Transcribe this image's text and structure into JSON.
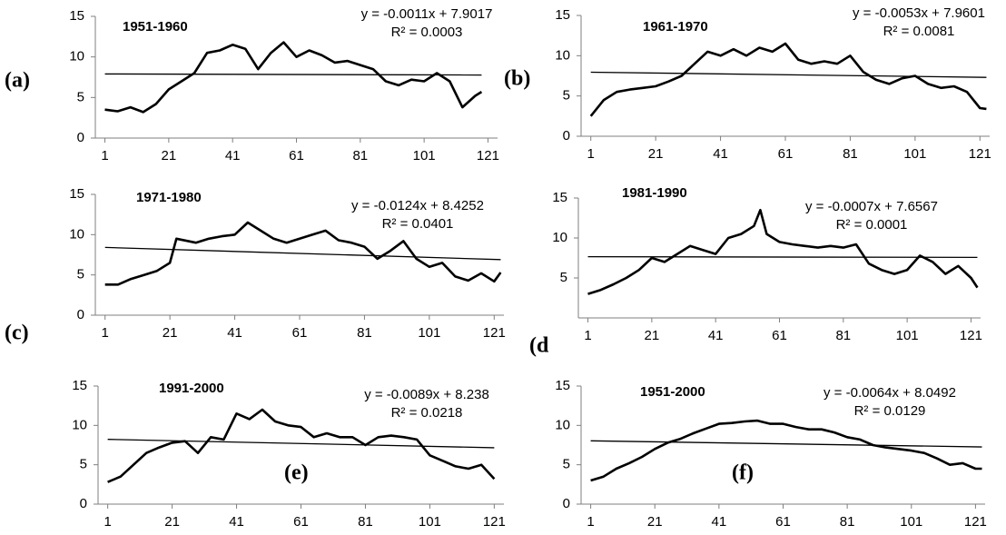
{
  "chart_data": [
    {
      "type": "line",
      "title": "1951-1960",
      "label": "(a)",
      "color": "#000000",
      "equation": "y = -0.0011x + 7.9017",
      "slope": -0.0011,
      "intercept": 7.9017,
      "r2": "R² = 0.0003",
      "x": [
        1,
        5,
        9,
        13,
        17,
        21,
        25,
        29,
        33,
        37,
        41,
        45,
        49,
        53,
        57,
        61,
        65,
        69,
        73,
        77,
        81,
        85,
        89,
        93,
        97,
        101,
        105,
        109,
        113,
        117,
        119
      ],
      "values": [
        3.5,
        3.3,
        3.8,
        3.2,
        4.2,
        6,
        7,
        8,
        10.5,
        10.8,
        11.5,
        11,
        8.5,
        10.5,
        11.8,
        10,
        10.8,
        10.2,
        9.3,
        9.5,
        9,
        8.5,
        7,
        6.5,
        7.2,
        7,
        8,
        7,
        3.8,
        5.2,
        5.7
      ],
      "xlim": [
        -2,
        124
      ],
      "ylim": [
        0,
        15
      ],
      "xticks": [
        1,
        21,
        41,
        61,
        81,
        101,
        121
      ],
      "yticks": [
        0,
        5,
        10,
        15
      ]
    },
    {
      "type": "line",
      "title": "1961-1970",
      "label": "(b)",
      "color": "#000000",
      "equation": "y = -0.0053x + 7.9601",
      "slope": -0.0053,
      "intercept": 7.9601,
      "r2": "R² = 0.0081",
      "x": [
        1,
        5,
        9,
        13,
        17,
        21,
        25,
        29,
        33,
        37,
        41,
        45,
        49,
        53,
        57,
        61,
        65,
        69,
        73,
        77,
        81,
        85,
        89,
        93,
        97,
        101,
        105,
        109,
        113,
        117,
        121,
        123
      ],
      "values": [
        2.5,
        4.5,
        5.5,
        5.8,
        6,
        6.2,
        6.8,
        7.5,
        9,
        10.5,
        10,
        10.8,
        10,
        11,
        10.5,
        11.5,
        9.5,
        9,
        9.3,
        9,
        10,
        8,
        7,
        6.5,
        7.2,
        7.5,
        6.5,
        6,
        6.2,
        5.5,
        3.5,
        3.4
      ],
      "xlim": [
        -2,
        124
      ],
      "ylim": [
        0,
        15
      ],
      "xticks": [
        1,
        21,
        41,
        61,
        81,
        101,
        121
      ],
      "yticks": [
        0,
        5,
        10,
        15
      ]
    },
    {
      "type": "line",
      "title": "1971-1980",
      "label": "(c)",
      "color": "#000000",
      "equation": "y = -0.0124x + 8.4252",
      "slope": -0.0124,
      "intercept": 8.4252,
      "r2": "R² = 0.0401",
      "x": [
        1,
        5,
        9,
        13,
        17,
        21,
        23,
        29,
        33,
        37,
        41,
        45,
        49,
        53,
        57,
        61,
        65,
        69,
        73,
        77,
        81,
        85,
        89,
        93,
        97,
        101,
        105,
        109,
        113,
        117,
        121,
        123
      ],
      "values": [
        3.8,
        3.8,
        4.5,
        5,
        5.5,
        6.5,
        9.5,
        9,
        9.5,
        9.8,
        10,
        11.5,
        10.5,
        9.5,
        9,
        9.5,
        10,
        10.5,
        9.3,
        9,
        8.5,
        7,
        8,
        9.2,
        7,
        6,
        6.5,
        4.8,
        4.3,
        5.2,
        4.2,
        5.3
      ],
      "xlim": [
        -2,
        124
      ],
      "ylim": [
        0,
        15
      ],
      "xticks": [
        1,
        21,
        41,
        61,
        81,
        101,
        121
      ],
      "yticks": [
        0,
        5,
        10,
        15
      ]
    },
    {
      "type": "line",
      "title": "1981-1990",
      "label": "(d",
      "color": "#000000",
      "equation": "y = -0.0007x + 7.6567",
      "slope": -0.0007,
      "intercept": 7.6567,
      "r2": "R² = 0.0001",
      "x": [
        1,
        5,
        9,
        13,
        17,
        21,
        25,
        29,
        33,
        37,
        41,
        45,
        49,
        53,
        55,
        57,
        61,
        65,
        69,
        73,
        77,
        81,
        85,
        89,
        93,
        97,
        101,
        105,
        109,
        113,
        117,
        121,
        123
      ],
      "values": [
        3,
        3.5,
        4.2,
        5,
        6,
        7.5,
        7,
        8,
        9,
        8.5,
        8,
        10,
        10.5,
        11.5,
        13.5,
        10.5,
        9.5,
        9.2,
        9,
        8.8,
        9,
        8.8,
        9.2,
        6.8,
        6,
        5.5,
        6,
        7.8,
        7,
        5.5,
        6.5,
        5,
        3.8
      ],
      "xlim": [
        -2,
        124
      ],
      "ylim": [
        0,
        15
      ],
      "xticks": [
        1,
        21,
        41,
        61,
        81,
        101,
        121
      ],
      "yticks": [
        5,
        10,
        15
      ]
    },
    {
      "type": "line",
      "title": "1991-2000",
      "label": "(e)",
      "color": "#000000",
      "equation": "y = -0.0089x + 8.238",
      "slope": -0.0089,
      "intercept": 8.238,
      "r2": "R² = 0.0218",
      "x": [
        1,
        5,
        9,
        13,
        17,
        21,
        25,
        29,
        33,
        37,
        41,
        45,
        49,
        53,
        57,
        61,
        65,
        69,
        73,
        77,
        81,
        85,
        89,
        93,
        97,
        101,
        105,
        109,
        113,
        117,
        121
      ],
      "values": [
        2.8,
        3.5,
        5,
        6.5,
        7.2,
        7.8,
        8,
        6.5,
        8.5,
        8.2,
        11.5,
        10.8,
        12,
        10.5,
        10,
        9.8,
        8.5,
        9,
        8.5,
        8.5,
        7.5,
        8.5,
        8.7,
        8.5,
        8.2,
        6.2,
        5.5,
        4.8,
        4.5,
        5,
        3.2
      ],
      "xlim": [
        -2,
        124
      ],
      "ylim": [
        0,
        15
      ],
      "xticks": [
        1,
        21,
        41,
        61,
        81,
        101,
        121
      ],
      "yticks": [
        0,
        5,
        10,
        15
      ]
    },
    {
      "type": "line",
      "title": "1951-2000",
      "label": "(f)",
      "color": "#000000",
      "equation": "y = -0.0064x + 8.0492",
      "slope": -0.0064,
      "intercept": 8.0492,
      "r2": "R² = 0.0129",
      "x": [
        1,
        5,
        9,
        13,
        17,
        21,
        25,
        29,
        33,
        37,
        41,
        45,
        49,
        53,
        57,
        61,
        65,
        69,
        73,
        77,
        81,
        85,
        89,
        93,
        97,
        101,
        105,
        109,
        113,
        117,
        121,
        123
      ],
      "values": [
        3,
        3.5,
        4.5,
        5.2,
        6,
        7,
        7.8,
        8.3,
        9,
        9.6,
        10.2,
        10.3,
        10.5,
        10.6,
        10.2,
        10.2,
        9.8,
        9.5,
        9.5,
        9.1,
        8.5,
        8.2,
        7.5,
        7.2,
        7,
        6.8,
        6.5,
        5.8,
        5,
        5.2,
        4.5,
        4.5
      ],
      "xlim": [
        -2,
        124
      ],
      "ylim": [
        0,
        15
      ],
      "xticks": [
        1,
        21,
        41,
        61,
        81,
        101,
        121
      ],
      "yticks": [
        0,
        5,
        10,
        15
      ]
    }
  ]
}
